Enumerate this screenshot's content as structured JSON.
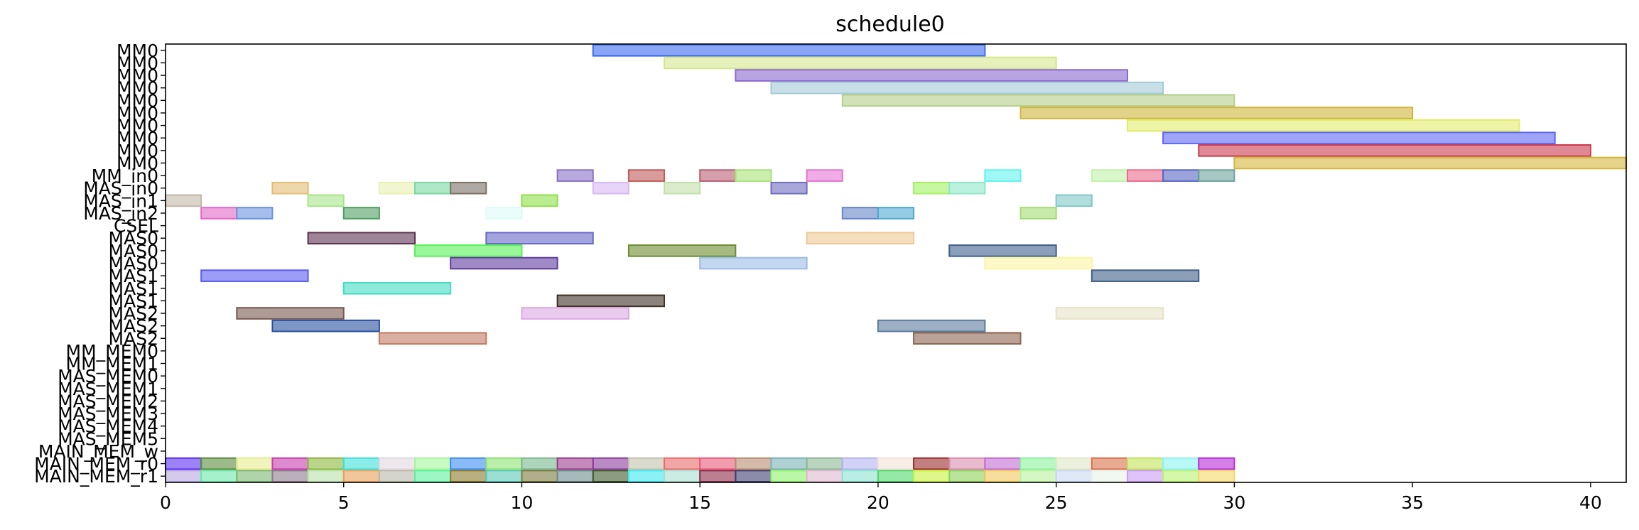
{
  "chart_data": {
    "type": "gantt",
    "title": "schedule0",
    "xlim": [
      0,
      41
    ],
    "x_ticks": [
      0,
      5,
      10,
      15,
      20,
      25,
      30,
      35,
      40
    ],
    "grid": false,
    "rows": [
      "MM0",
      "MM0",
      "MM0",
      "MM0",
      "MM0",
      "MM0",
      "MM0",
      "MM0",
      "MM0",
      "MM0",
      "MM_in0",
      "MAS_in0",
      "MAS_in1",
      "MAS_in2",
      "CSEL",
      "MAS0",
      "MAS0",
      "MAS0",
      "MAS1",
      "MAS1",
      "MAS1",
      "MAS2",
      "MAS2",
      "MAS2",
      "MM_MEM0",
      "MM_MEM1",
      "MAS_MEM0",
      "MAS_MEM1",
      "MAS_MEM2",
      "MAS_MEM3",
      "MAS_MEM4",
      "MAS_MEM5",
      "MAIN_MEM_w",
      "MAIN_MEM_r0",
      "MAIN_MEM_r1"
    ],
    "tasks": [
      {
        "row": 0,
        "start": 12,
        "end": 23,
        "color": "#3b6bf2"
      },
      {
        "row": 1,
        "start": 14,
        "end": 25,
        "color": "#d4e68c"
      },
      {
        "row": 2,
        "start": 16,
        "end": 27,
        "color": "#8a68cf"
      },
      {
        "row": 3,
        "start": 17,
        "end": 28,
        "color": "#a3cad8"
      },
      {
        "row": 4,
        "start": 19,
        "end": 30,
        "color": "#b3cf8a"
      },
      {
        "row": 5,
        "start": 24,
        "end": 35,
        "color": "#d1b53b"
      },
      {
        "row": 6,
        "start": 27,
        "end": 38,
        "color": "#e2ec6a"
      },
      {
        "row": 7,
        "start": 28,
        "end": 39,
        "color": "#5f68f2"
      },
      {
        "row": 8,
        "start": 29,
        "end": 40,
        "color": "#c93b50"
      },
      {
        "row": 9,
        "start": 30,
        "end": 41,
        "color": "#d2b53a"
      },
      {
        "row": 10,
        "start": 11,
        "end": 12,
        "color": "#8a72c6"
      },
      {
        "row": 10,
        "start": 13,
        "end": 14,
        "color": "#c05a5a"
      },
      {
        "row": 10,
        "start": 15,
        "end": 16,
        "color": "#bb5f74"
      },
      {
        "row": 10,
        "start": 16,
        "end": 17,
        "color": "#a8e27a"
      },
      {
        "row": 10,
        "start": 18,
        "end": 19,
        "color": "#e575d3"
      },
      {
        "row": 10,
        "start": 23,
        "end": 24,
        "color": "#63f2ed"
      },
      {
        "row": 10,
        "start": 26,
        "end": 27,
        "color": "#c2f0a8"
      },
      {
        "row": 10,
        "start": 27,
        "end": 28,
        "color": "#ea6a8e"
      },
      {
        "row": 10,
        "start": 28,
        "end": 29,
        "color": "#5766c2"
      },
      {
        "row": 10,
        "start": 29,
        "end": 30,
        "color": "#6aa29b"
      },
      {
        "row": 11,
        "start": 3,
        "end": 4,
        "color": "#e3bd72"
      },
      {
        "row": 11,
        "start": 6,
        "end": 7,
        "color": "#eaf0b0"
      },
      {
        "row": 11,
        "start": 7,
        "end": 8,
        "color": "#78d8a0"
      },
      {
        "row": 11,
        "start": 8,
        "end": 9,
        "color": "#7a7068"
      },
      {
        "row": 11,
        "start": 12,
        "end": 13,
        "color": "#d8b8f2"
      },
      {
        "row": 11,
        "start": 14,
        "end": 15,
        "color": "#c2e0a8"
      },
      {
        "row": 11,
        "start": 17,
        "end": 18,
        "color": "#6f6dbf"
      },
      {
        "row": 11,
        "start": 21,
        "end": 22,
        "color": "#a2f260"
      },
      {
        "row": 11,
        "start": 22,
        "end": 23,
        "color": "#8ee8c8"
      },
      {
        "row": 12,
        "start": 0,
        "end": 1,
        "color": "#c2b8a8"
      },
      {
        "row": 12,
        "start": 4,
        "end": 5,
        "color": "#a8e588"
      },
      {
        "row": 12,
        "start": 10,
        "end": 11,
        "color": "#8ee04a"
      },
      {
        "row": 12,
        "start": 25,
        "end": 26,
        "color": "#7fc8c8"
      },
      {
        "row": 13,
        "start": 1,
        "end": 2,
        "color": "#e468c8"
      },
      {
        "row": 13,
        "start": 2,
        "end": 3,
        "color": "#6a92e0"
      },
      {
        "row": 13,
        "start": 5,
        "end": 6,
        "color": "#4f9e62"
      },
      {
        "row": 13,
        "start": 9,
        "end": 10,
        "color": "#dcfcf6"
      },
      {
        "row": 13,
        "start": 19,
        "end": 20,
        "color": "#6685c8"
      },
      {
        "row": 13,
        "start": 20,
        "end": 21,
        "color": "#4ea8d0"
      },
      {
        "row": 13,
        "start": 24,
        "end": 25,
        "color": "#a2dc72"
      },
      {
        "row": 15,
        "start": 4,
        "end": 7,
        "color": "#5c3250"
      },
      {
        "row": 15,
        "start": 9,
        "end": 12,
        "color": "#6868c8"
      },
      {
        "row": 15,
        "start": 18,
        "end": 21,
        "color": "#ecc894"
      },
      {
        "row": 16,
        "start": 7,
        "end": 10,
        "color": "#55f255"
      },
      {
        "row": 16,
        "start": 13,
        "end": 16,
        "color": "#6a8c2e"
      },
      {
        "row": 16,
        "start": 22,
        "end": 25,
        "color": "#3e5f8c"
      },
      {
        "row": 17,
        "start": 8,
        "end": 11,
        "color": "#603c9e"
      },
      {
        "row": 17,
        "start": 15,
        "end": 18,
        "color": "#9cbce6"
      },
      {
        "row": 17,
        "start": 23,
        "end": 26,
        "color": "#fcf4a4"
      },
      {
        "row": 18,
        "start": 1,
        "end": 4,
        "color": "#5a5cf2"
      },
      {
        "row": 18,
        "start": 26,
        "end": 29,
        "color": "#3e5f86"
      },
      {
        "row": 19,
        "start": 5,
        "end": 8,
        "color": "#42dcc2"
      },
      {
        "row": 20,
        "start": 11,
        "end": 14,
        "color": "#3e3224"
      },
      {
        "row": 21,
        "start": 2,
        "end": 5,
        "color": "#7a5850"
      },
      {
        "row": 21,
        "start": 10,
        "end": 13,
        "color": "#dca8e2"
      },
      {
        "row": 21,
        "start": 25,
        "end": 28,
        "color": "#e6e2c4"
      },
      {
        "row": 22,
        "start": 3,
        "end": 6,
        "color": "#28509e"
      },
      {
        "row": 22,
        "start": 20,
        "end": 23,
        "color": "#5a7a9c"
      },
      {
        "row": 23,
        "start": 6,
        "end": 9,
        "color": "#c07a62"
      },
      {
        "row": 23,
        "start": 21,
        "end": 24,
        "color": "#8c6452"
      },
      {
        "row": 33,
        "start": 0,
        "end": 1,
        "color": "#5a30f2"
      },
      {
        "row": 33,
        "start": 1,
        "end": 2,
        "color": "#5a8c3e"
      },
      {
        "row": 33,
        "start": 2,
        "end": 3,
        "color": "#e8ec90"
      },
      {
        "row": 33,
        "start": 3,
        "end": 4,
        "color": "#c63cae"
      },
      {
        "row": 33,
        "start": 4,
        "end": 5,
        "color": "#8cb83e"
      },
      {
        "row": 33,
        "start": 5,
        "end": 6,
        "color": "#3ee0d8"
      },
      {
        "row": 33,
        "start": 6,
        "end": 7,
        "color": "#e2d8e0"
      },
      {
        "row": 33,
        "start": 7,
        "end": 8,
        "color": "#a4f69c"
      },
      {
        "row": 33,
        "start": 8,
        "end": 9,
        "color": "#3c8cf2"
      },
      {
        "row": 33,
        "start": 9,
        "end": 10,
        "color": "#8ce272"
      },
      {
        "row": 33,
        "start": 10,
        "end": 11,
        "color": "#7ab890"
      },
      {
        "row": 33,
        "start": 11,
        "end": 12,
        "color": "#9c3c8c"
      },
      {
        "row": 33,
        "start": 12,
        "end": 13,
        "color": "#8c3c9c"
      },
      {
        "row": 33,
        "start": 13,
        "end": 14,
        "color": "#c2c2ac"
      },
      {
        "row": 33,
        "start": 14,
        "end": 15,
        "color": "#ea6a6a"
      },
      {
        "row": 33,
        "start": 15,
        "end": 16,
        "color": "#ea5a7a"
      },
      {
        "row": 33,
        "start": 16,
        "end": 17,
        "color": "#b88c72"
      },
      {
        "row": 33,
        "start": 17,
        "end": 18,
        "color": "#7ab2b8"
      },
      {
        "row": 33,
        "start": 18,
        "end": 19,
        "color": "#8cb896"
      },
      {
        "row": 33,
        "start": 19,
        "end": 20,
        "color": "#b4b4f0"
      },
      {
        "row": 33,
        "start": 20,
        "end": 21,
        "color": "#f4e2d8"
      },
      {
        "row": 33,
        "start": 21,
        "end": 22,
        "color": "#9c2c2c"
      },
      {
        "row": 33,
        "start": 22,
        "end": 23,
        "color": "#d88cac"
      },
      {
        "row": 33,
        "start": 23,
        "end": 24,
        "color": "#c26ad2"
      },
      {
        "row": 33,
        "start": 24,
        "end": 25,
        "color": "#8cf29c"
      },
      {
        "row": 33,
        "start": 25,
        "end": 26,
        "color": "#e0e8c8"
      },
      {
        "row": 33,
        "start": 26,
        "end": 27,
        "color": "#d8724a"
      },
      {
        "row": 33,
        "start": 27,
        "end": 28,
        "color": "#c2e25a"
      },
      {
        "row": 33,
        "start": 28,
        "end": 29,
        "color": "#8cf2f2"
      },
      {
        "row": 33,
        "start": 29,
        "end": 30,
        "color": "#b82cd8"
      },
      {
        "row": 34,
        "start": 0,
        "end": 1,
        "color": "#b8a8e0"
      },
      {
        "row": 34,
        "start": 1,
        "end": 2,
        "color": "#6ae8a8"
      },
      {
        "row": 34,
        "start": 2,
        "end": 3,
        "color": "#7ab872"
      },
      {
        "row": 34,
        "start": 3,
        "end": 4,
        "color": "#8c7a8c"
      },
      {
        "row": 34,
        "start": 4,
        "end": 5,
        "color": "#b8e2a8"
      },
      {
        "row": 34,
        "start": 5,
        "end": 6,
        "color": "#e8a05a"
      },
      {
        "row": 34,
        "start": 6,
        "end": 7,
        "color": "#b8b8a8"
      },
      {
        "row": 34,
        "start": 7,
        "end": 8,
        "color": "#5af29c"
      },
      {
        "row": 34,
        "start": 8,
        "end": 9,
        "color": "#8c7a2c"
      },
      {
        "row": 34,
        "start": 9,
        "end": 10,
        "color": "#5ac8b8"
      },
      {
        "row": 34,
        "start": 10,
        "end": 11,
        "color": "#7a7a3e"
      },
      {
        "row": 34,
        "start": 11,
        "end": 12,
        "color": "#6a8c8c"
      },
      {
        "row": 34,
        "start": 12,
        "end": 13,
        "color": "#3e5a2c"
      },
      {
        "row": 34,
        "start": 13,
        "end": 14,
        "color": "#3ee8f2"
      },
      {
        "row": 34,
        "start": 14,
        "end": 15,
        "color": "#a8e0d0"
      },
      {
        "row": 34,
        "start": 15,
        "end": 16,
        "color": "#8c2c4a"
      },
      {
        "row": 34,
        "start": 16,
        "end": 17,
        "color": "#3e3e72"
      },
      {
        "row": 34,
        "start": 17,
        "end": 18,
        "color": "#8cf26a"
      },
      {
        "row": 34,
        "start": 18,
        "end": 19,
        "color": "#e0b8d0"
      },
      {
        "row": 34,
        "start": 19,
        "end": 20,
        "color": "#8ce2d0"
      },
      {
        "row": 34,
        "start": 20,
        "end": 21,
        "color": "#4ed86a"
      },
      {
        "row": 34,
        "start": 21,
        "end": 22,
        "color": "#c8f23e"
      },
      {
        "row": 34,
        "start": 22,
        "end": 23,
        "color": "#8cd05a"
      },
      {
        "row": 34,
        "start": 23,
        "end": 24,
        "color": "#f2c85a"
      },
      {
        "row": 34,
        "start": 24,
        "end": 25,
        "color": "#b8f29c"
      },
      {
        "row": 34,
        "start": 25,
        "end": 26,
        "color": "#c8d8f2"
      },
      {
        "row": 34,
        "start": 26,
        "end": 27,
        "color": "#e8f2e8"
      },
      {
        "row": 34,
        "start": 27,
        "end": 28,
        "color": "#c89cf2"
      },
      {
        "row": 34,
        "start": 28,
        "end": 29,
        "color": "#b8f272"
      },
      {
        "row": 34,
        "start": 29,
        "end": 30,
        "color": "#f2d86a"
      }
    ]
  }
}
